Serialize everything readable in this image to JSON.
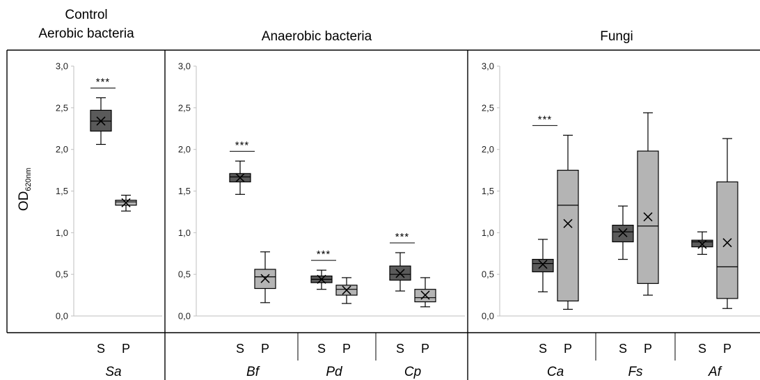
{
  "chart_data": {
    "type": "box",
    "ylabel_main": "OD",
    "ylabel_sub": "620nm",
    "ylim": [
      0,
      3
    ],
    "yticks": [
      "0,0",
      "0,5",
      "1,0",
      "1,5",
      "2,0",
      "2,5",
      "3,0"
    ],
    "colors": {
      "S": "#5a5a5a",
      "P": "#b4b4b4"
    },
    "panels": [
      {
        "title_lines": [
          "Control",
          "Aerobic bacteria"
        ],
        "groups": [
          {
            "organism": "Sa",
            "significance": "***",
            "boxes": [
              {
                "label": "S",
                "whisker_low": 2.06,
                "q1": 2.22,
                "median": 2.34,
                "q3": 2.47,
                "whisker_high": 2.62,
                "mean": 2.34
              },
              {
                "label": "P",
                "whisker_low": 1.26,
                "q1": 1.33,
                "median": 1.37,
                "q3": 1.39,
                "whisker_high": 1.45,
                "mean": 1.36
              }
            ]
          }
        ]
      },
      {
        "title_lines": [
          "Anaerobic bacteria"
        ],
        "groups": [
          {
            "organism": "Bf",
            "significance": "***",
            "boxes": [
              {
                "label": "S",
                "whisker_low": 1.46,
                "q1": 1.61,
                "median": 1.67,
                "q3": 1.71,
                "whisker_high": 1.86,
                "mean": 1.66
              },
              {
                "label": "P",
                "whisker_low": 0.16,
                "q1": 0.33,
                "median": 0.47,
                "q3": 0.56,
                "whisker_high": 0.77,
                "mean": 0.45
              }
            ]
          },
          {
            "organism": "Pd",
            "significance": "***",
            "boxes": [
              {
                "label": "S",
                "whisker_low": 0.32,
                "q1": 0.4,
                "median": 0.44,
                "q3": 0.48,
                "whisker_high": 0.55,
                "mean": 0.44
              },
              {
                "label": "P",
                "whisker_low": 0.15,
                "q1": 0.25,
                "median": 0.32,
                "q3": 0.37,
                "whisker_high": 0.46,
                "mean": 0.31
              }
            ]
          },
          {
            "organism": "Cp",
            "significance": "***",
            "boxes": [
              {
                "label": "S",
                "whisker_low": 0.3,
                "q1": 0.43,
                "median": 0.5,
                "q3": 0.6,
                "whisker_high": 0.76,
                "mean": 0.51
              },
              {
                "label": "P",
                "whisker_low": 0.11,
                "q1": 0.17,
                "median": 0.22,
                "q3": 0.32,
                "whisker_high": 0.46,
                "mean": 0.25
              }
            ]
          }
        ]
      },
      {
        "title_lines": [
          "Fungi"
        ],
        "groups": [
          {
            "organism": "Ca",
            "significance": "***",
            "boxes": [
              {
                "label": "S",
                "whisker_low": 0.29,
                "q1": 0.53,
                "median": 0.63,
                "q3": 0.68,
                "whisker_high": 0.92,
                "mean": 0.62
              },
              {
                "label": "P",
                "whisker_low": 0.08,
                "q1": 0.18,
                "median": 1.33,
                "q3": 1.75,
                "whisker_high": 2.17,
                "mean": 1.11
              }
            ]
          },
          {
            "organism": "Fs",
            "significance": "",
            "boxes": [
              {
                "label": "S",
                "whisker_low": 0.68,
                "q1": 0.89,
                "median": 1.01,
                "q3": 1.09,
                "whisker_high": 1.32,
                "mean": 1.0
              },
              {
                "label": "P",
                "whisker_low": 0.25,
                "q1": 0.39,
                "median": 1.08,
                "q3": 1.98,
                "whisker_high": 2.44,
                "mean": 1.19
              }
            ]
          },
          {
            "organism": "Af",
            "significance": "",
            "boxes": [
              {
                "label": "S",
                "whisker_low": 0.74,
                "q1": 0.83,
                "median": 0.89,
                "q3": 0.91,
                "whisker_high": 1.01,
                "mean": 0.86
              },
              {
                "label": "P",
                "whisker_low": 0.09,
                "q1": 0.21,
                "median": 0.59,
                "q3": 1.61,
                "whisker_high": 2.13,
                "mean": 0.88
              }
            ]
          }
        ]
      }
    ]
  }
}
